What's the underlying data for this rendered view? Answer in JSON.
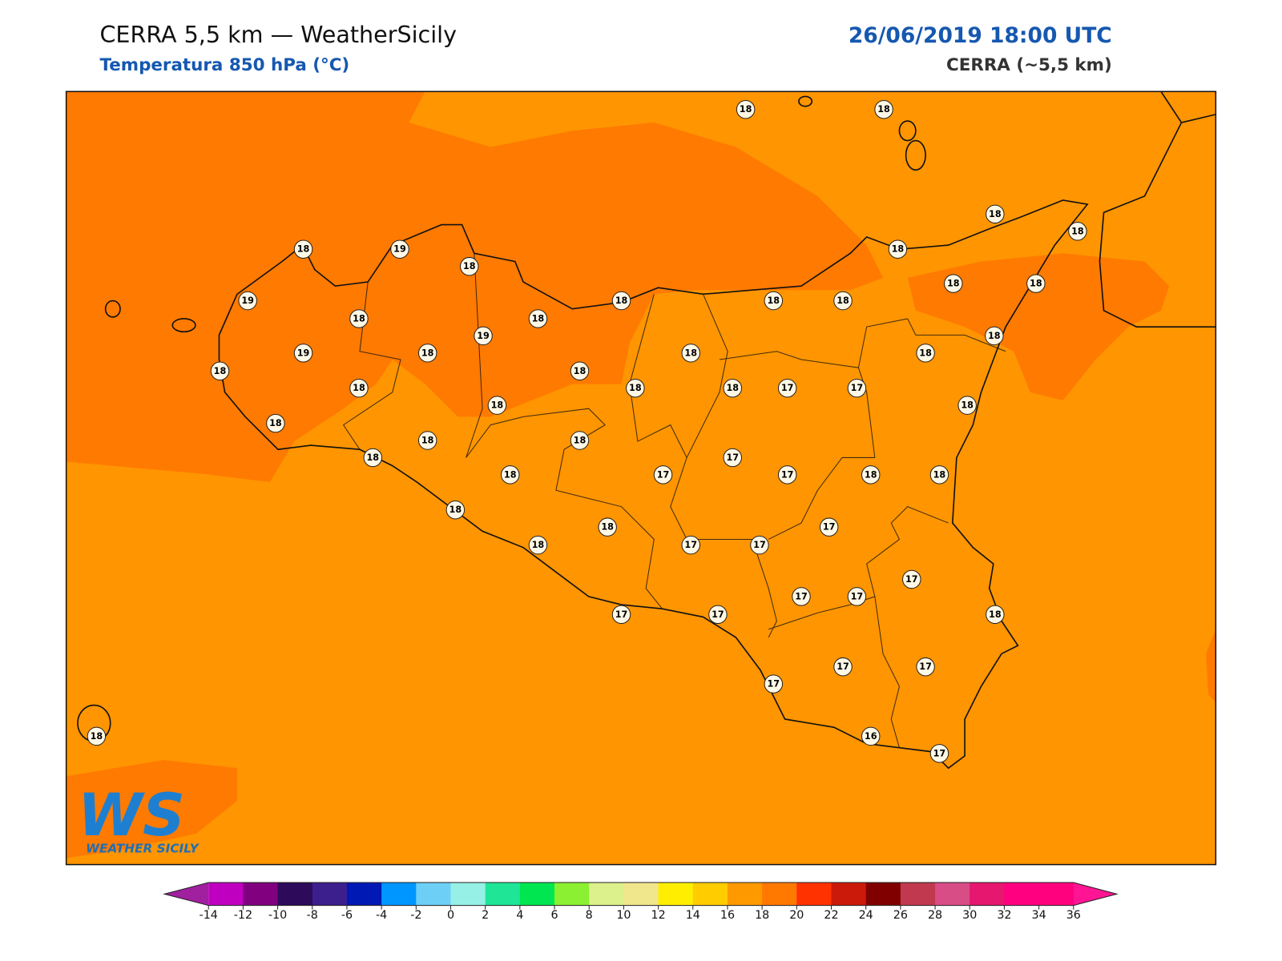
{
  "header": {
    "title": "CERRA 5,5 km — WeatherSicily",
    "subtitle": "Temperatura 850 hPa (°C)",
    "datetime": "26/06/2019 18:00 UTC",
    "model": "CERRA (~5,5 km)"
  },
  "stations": [
    18,
    18,
    18,
    18,
    18,
    19,
    18,
    18,
    18,
    18,
    19,
    18,
    18,
    18,
    18,
    18,
    19,
    18,
    19,
    18,
    18,
    18,
    18,
    18,
    18,
    18,
    18,
    17,
    17,
    18,
    18,
    18,
    18,
    18,
    18,
    17,
    18,
    17,
    17,
    18,
    18,
    18,
    17,
    18,
    18,
    17,
    17,
    17,
    17,
    17,
    17,
    17,
    18,
    17,
    17,
    17,
    18,
    16,
    17
  ],
  "colorbar": {
    "ticks": [
      -14,
      -12,
      -10,
      -8,
      -6,
      -4,
      -2,
      0,
      2,
      4,
      6,
      8,
      10,
      12,
      14,
      16,
      18,
      20,
      22,
      24,
      26,
      28,
      30,
      32,
      34,
      36
    ],
    "colors": [
      "#c000c0",
      "#800080",
      "#2d0a5a",
      "#3c1e8c",
      "#0018b4",
      "#0096ff",
      "#6ecff6",
      "#96f0e6",
      "#1ee696",
      "#00e650",
      "#8cf032",
      "#dcf08c",
      "#f0e68c",
      "#ffee00",
      "#ffcc00",
      "#ff9900",
      "#ff7800",
      "#ff3200",
      "#cc1a0a",
      "#800000",
      "#c0394f",
      "#d94d87",
      "#e6176e",
      "#ff0080",
      "#ff007f"
    ],
    "under_color": "#a020a0",
    "over_color": "#ff1493"
  },
  "logo": {
    "initials": "WS",
    "text": "WEATHER SICILY"
  }
}
